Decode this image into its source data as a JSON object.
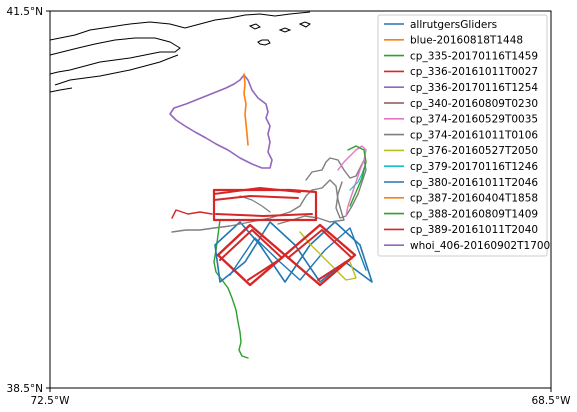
{
  "map": {
    "lat_top_label": "41.5°N",
    "lat_bottom_label": "38.5°N",
    "lon_left_label": "72.5°W",
    "lon_right_label": "68.5°W"
  },
  "chart_data": {
    "type": "line",
    "title": "",
    "xlabel": "",
    "ylabel": "",
    "xlim": [
      -72.5,
      -68.5
    ],
    "ylim": [
      38.5,
      41.5
    ],
    "legend_position": "top-right",
    "series": [
      {
        "name": "allrutgersGliders",
        "color": "#1f77b4"
      },
      {
        "name": "blue-20160818T1448",
        "color": "#ff7f0e"
      },
      {
        "name": "cp_335-20170116T1459",
        "color": "#2ca02c"
      },
      {
        "name": "cp_336-20161011T0027",
        "color": "#d62728"
      },
      {
        "name": "cp_336-20170116T1254",
        "color": "#9467bd"
      },
      {
        "name": "cp_340-20160809T0230",
        "color": "#8c564b"
      },
      {
        "name": "cp_374-20160529T0035",
        "color": "#e377c2"
      },
      {
        "name": "cp_374-20161011T0106",
        "color": "#7f7f7f"
      },
      {
        "name": "cp_376-20160527T2050",
        "color": "#bcbd22"
      },
      {
        "name": "cp_379-20170116T1246",
        "color": "#17becf"
      },
      {
        "name": "cp_380-20161011T2046",
        "color": "#1f77b4"
      },
      {
        "name": "cp_387-20160404T1858",
        "color": "#ff7f0e"
      },
      {
        "name": "cp_388-20160809T1409",
        "color": "#2ca02c"
      },
      {
        "name": "cp_389-20161011T2040",
        "color": "#d62728"
      },
      {
        "name": "whoi_406-20160902T1700",
        "color": "#9467bd"
      }
    ]
  }
}
